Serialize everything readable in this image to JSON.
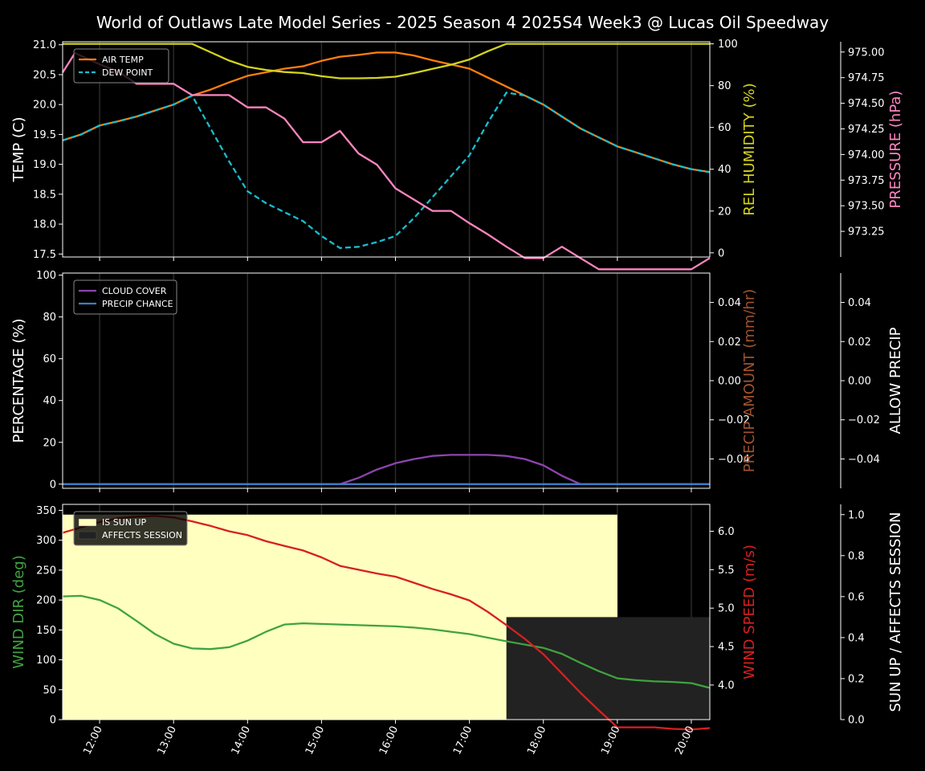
{
  "title": "World of Outlaws Late Model Series - 2025 Season 4 2025S4 Week3 @ Lucas Oil Speedway",
  "x_ticks": [
    "12:00",
    "13:00",
    "14:00",
    "15:00",
    "16:00",
    "17:00",
    "18:00",
    "19:00",
    "20:00"
  ],
  "colors": {
    "air_temp": "#ff7f0e",
    "dew_point": "#17becf",
    "humidity": "#d4d41c",
    "pressure": "#ff85c0",
    "cloud": "#8e44ad",
    "precip_chance": "#3b7dc4",
    "precip_amount": "#a0522d",
    "wind_dir": "#3fa33f",
    "wind_speed": "#d62020",
    "sun_up": "#ffffc0",
    "affects": "#222222"
  },
  "chart_data": [
    {
      "type": "line",
      "x_range": [
        "11:30",
        "20:15"
      ],
      "legend": {
        "placement": "top-left",
        "entries": [
          "AIR TEMP",
          "DEW POINT"
        ]
      },
      "axes": {
        "left": {
          "label": "TEMP (C)",
          "range": [
            17.45,
            21.05
          ],
          "ticks": [
            "17.5",
            "18.0",
            "18.5",
            "19.0",
            "19.5",
            "20.0",
            "20.5",
            "21.0"
          ]
        },
        "right1": {
          "label": "REL HUMIDITY (%)",
          "range": [
            -2,
            101
          ],
          "ticks": [
            "0",
            "20",
            "40",
            "60",
            "80",
            "100"
          ]
        },
        "right2": {
          "label": "PRESSURE (hPa)",
          "range": [
            973.0,
            975.1
          ],
          "ticks": [
            "973.25",
            "973.50",
            "973.75",
            "974.00",
            "974.25",
            "974.50",
            "974.75",
            "975.00"
          ]
        }
      },
      "series": [
        {
          "name": "AIR TEMP",
          "axis": "left",
          "style": "solid",
          "x": [
            "11:30",
            "11:45",
            "12:00",
            "12:15",
            "12:30",
            "12:45",
            "13:00",
            "13:15",
            "13:30",
            "13:45",
            "14:00",
            "14:15",
            "14:30",
            "14:45",
            "15:00",
            "15:15",
            "15:30",
            "15:45",
            "16:00",
            "16:15",
            "16:30",
            "16:45",
            "17:00",
            "17:15",
            "17:30",
            "17:45",
            "18:00",
            "18:15",
            "18:30",
            "18:45",
            "19:00",
            "19:15",
            "19:30",
            "19:45",
            "20:00",
            "20:15"
          ],
          "y": [
            19.4,
            19.5,
            19.65,
            19.72,
            19.8,
            19.9,
            20.0,
            20.15,
            20.25,
            20.37,
            20.48,
            20.54,
            20.6,
            20.64,
            20.73,
            20.8,
            20.83,
            20.87,
            20.87,
            20.82,
            20.74,
            20.67,
            20.6,
            20.45,
            20.3,
            20.15,
            20.0,
            19.8,
            19.6,
            19.45,
            19.3,
            19.2,
            19.1,
            19.0,
            18.92,
            18.87
          ]
        },
        {
          "name": "DEW POINT",
          "axis": "left",
          "style": "dashed",
          "x": [
            "11:30",
            "11:45",
            "12:00",
            "12:15",
            "12:30",
            "12:45",
            "13:00",
            "13:15",
            "13:30",
            "13:45",
            "14:00",
            "14:15",
            "14:30",
            "14:45",
            "15:00",
            "15:15",
            "15:30",
            "15:45",
            "16:00",
            "16:15",
            "16:30",
            "16:45",
            "17:00",
            "17:15",
            "17:30",
            "17:45",
            "18:00",
            "18:15",
            "18:30",
            "18:45",
            "19:00",
            "19:15",
            "19:30",
            "19:45",
            "20:00",
            "20:15"
          ],
          "y": [
            19.4,
            19.5,
            19.65,
            19.72,
            19.8,
            19.9,
            20.0,
            20.15,
            19.6,
            19.05,
            18.55,
            18.35,
            18.2,
            18.05,
            17.8,
            17.6,
            17.62,
            17.7,
            17.8,
            18.1,
            18.45,
            18.8,
            19.15,
            19.7,
            20.2,
            20.15,
            20.0,
            19.8,
            19.6,
            19.45,
            19.3,
            19.2,
            19.1,
            19.0,
            18.92,
            18.87
          ]
        },
        {
          "name": "REL HUMIDITY (%)",
          "axis": "right1",
          "style": "solid",
          "x": [
            "11:30",
            "12:00",
            "12:30",
            "13:00",
            "13:15",
            "13:30",
            "13:45",
            "14:00",
            "14:15",
            "14:30",
            "14:45",
            "15:00",
            "15:15",
            "15:30",
            "15:45",
            "16:00",
            "16:15",
            "16:30",
            "16:45",
            "17:00",
            "17:15",
            "17:30",
            "17:45",
            "18:00",
            "18:30",
            "19:00",
            "19:30",
            "20:00",
            "20:15"
          ],
          "y": [
            100,
            100,
            100,
            100,
            100,
            96,
            92,
            89,
            87.5,
            86.5,
            86,
            84.5,
            83.5,
            83.5,
            83.7,
            84.3,
            86,
            88,
            90,
            92.5,
            96.5,
            100,
            100,
            100,
            100,
            100,
            100,
            100,
            100
          ]
        },
        {
          "name": "PRESSURE (hPa)",
          "axis": "right2",
          "style": "solid",
          "x": [
            "11:30",
            "11:40",
            "12:00",
            "12:15",
            "12:30",
            "12:45",
            "13:00",
            "13:15",
            "13:30",
            "13:45",
            "14:00",
            "14:15",
            "14:30",
            "14:45",
            "15:00",
            "15:15",
            "15:30",
            "15:45",
            "16:00",
            "16:15",
            "16:30",
            "16:45",
            "17:00",
            "17:15",
            "17:30",
            "17:45",
            "18:00",
            "18:15",
            "18:30",
            "18:45",
            "19:00",
            "19:15",
            "19:30",
            "19:45",
            "20:00",
            "20:15"
          ],
          "y": [
            974.8,
            974.99,
            974.88,
            974.81,
            974.69,
            974.69,
            974.69,
            974.58,
            974.58,
            974.58,
            974.46,
            974.46,
            974.35,
            974.12,
            974.12,
            974.23,
            974.01,
            973.9,
            973.67,
            973.56,
            973.45,
            973.45,
            973.33,
            973.22,
            973.1,
            972.99,
            972.99,
            973.1,
            972.99,
            972.88,
            972.88,
            972.88,
            972.88,
            972.88,
            972.88,
            972.99
          ]
        }
      ]
    },
    {
      "type": "line",
      "x_range": [
        "11:30",
        "20:15"
      ],
      "legend": {
        "placement": "top-left",
        "entries": [
          "CLOUD COVER",
          "PRECIP CHANCE"
        ]
      },
      "axes": {
        "left": {
          "label": "PERCENTAGE (%)",
          "range": [
            -2,
            101
          ],
          "ticks": [
            "0",
            "20",
            "40",
            "60",
            "80",
            "100"
          ]
        },
        "right1": {
          "label": "PRECIP AMOUNT (mm/hr)",
          "range": [
            -0.055,
            0.055
          ],
          "ticks": [
            "−0.04",
            "−0.02",
            "0.00",
            "0.02",
            "0.04"
          ]
        },
        "right2": {
          "label": "ALLOW PRECIP",
          "range": [
            -0.055,
            0.055
          ],
          "ticks": [
            "−0.04",
            "−0.02",
            "0.00",
            "0.02",
            "0.04"
          ]
        }
      },
      "series": [
        {
          "name": "CLOUD COVER",
          "axis": "left",
          "x": [
            "11:30",
            "15:00",
            "15:15",
            "15:30",
            "15:45",
            "16:00",
            "16:15",
            "16:30",
            "16:45",
            "17:00",
            "17:15",
            "17:30",
            "17:45",
            "18:00",
            "18:15",
            "18:30",
            "20:15"
          ],
          "y": [
            0,
            0,
            0,
            3,
            7,
            10,
            12,
            13.5,
            14,
            14,
            14,
            13.5,
            12,
            9,
            4,
            0,
            0
          ]
        },
        {
          "name": "PRECIP CHANCE",
          "axis": "left",
          "x": [
            "11:30",
            "20:15"
          ],
          "y": [
            0,
            0
          ]
        }
      ]
    },
    {
      "type": "line",
      "x_range": [
        "11:30",
        "20:15"
      ],
      "legend": {
        "placement": "top-left",
        "entries": [
          "IS SUN UP",
          "AFFECTS SESSION"
        ]
      },
      "axes": {
        "left": {
          "label": "WIND DIR (deg)",
          "range": [
            0,
            360
          ],
          "ticks": [
            "0",
            "50",
            "100",
            "150",
            "200",
            "250",
            "300",
            "350"
          ]
        },
        "right1": {
          "label": "WIND SPEED (m/s)",
          "range": [
            3.55,
            6.35
          ],
          "ticks": [
            "4.0",
            "4.5",
            "5.0",
            "5.5",
            "6.0"
          ]
        },
        "right2": {
          "label": "SUN UP / AFFECTS SESSION",
          "range": [
            0,
            1.05
          ],
          "ticks": [
            "0.0",
            "0.2",
            "0.4",
            "0.6",
            "0.8",
            "1.0"
          ]
        }
      },
      "areas": [
        {
          "name": "IS SUN UP",
          "x_start": "11:30",
          "x_end": "19:00",
          "y": 1.0
        },
        {
          "name": "AFFECTS SESSION",
          "x_start": "17:30",
          "x_end": "20:15",
          "y": 0.5
        }
      ],
      "series": [
        {
          "name": "WIND DIR (deg)",
          "axis": "left",
          "x": [
            "11:30",
            "11:45",
            "12:00",
            "12:15",
            "12:30",
            "12:45",
            "13:00",
            "13:15",
            "13:30",
            "13:45",
            "14:00",
            "14:15",
            "14:30",
            "14:45",
            "15:00",
            "15:30",
            "16:00",
            "16:15",
            "16:30",
            "16:45",
            "17:00",
            "17:30",
            "18:00",
            "18:15",
            "18:30",
            "18:45",
            "19:00",
            "19:15",
            "19:30",
            "19:45",
            "20:00",
            "20:15"
          ],
          "y": [
            206,
            207,
            200,
            186,
            165,
            143,
            127,
            119,
            118,
            121,
            132,
            147,
            159,
            161,
            160,
            158,
            156,
            154,
            151,
            147,
            143,
            131,
            120,
            110,
            95,
            81,
            69,
            66,
            64,
            63,
            61,
            53
          ]
        },
        {
          "name": "WIND SPEED (m/s)",
          "axis": "right1",
          "x": [
            "11:30",
            "11:45",
            "12:00",
            "12:15",
            "12:30",
            "12:45",
            "13:00",
            "13:15",
            "13:30",
            "13:45",
            "14:00",
            "14:15",
            "14:30",
            "14:45",
            "15:00",
            "15:15",
            "15:30",
            "15:45",
            "16:00",
            "16:15",
            "16:30",
            "16:45",
            "17:00",
            "17:15",
            "17:30",
            "17:45",
            "18:00",
            "18:15",
            "18:30",
            "18:45",
            "19:00",
            "19:15",
            "19:30",
            "19:45",
            "20:00",
            "20:15"
          ],
          "y": [
            5.98,
            6.05,
            6.12,
            6.17,
            6.19,
            6.2,
            6.18,
            6.13,
            6.07,
            6.0,
            5.95,
            5.87,
            5.81,
            5.75,
            5.66,
            5.55,
            5.5,
            5.45,
            5.41,
            5.33,
            5.25,
            5.18,
            5.1,
            4.95,
            4.78,
            4.6,
            4.4,
            4.15,
            3.9,
            3.67,
            3.45,
            3.45,
            3.45,
            3.43,
            3.42,
            3.44
          ]
        }
      ]
    }
  ]
}
